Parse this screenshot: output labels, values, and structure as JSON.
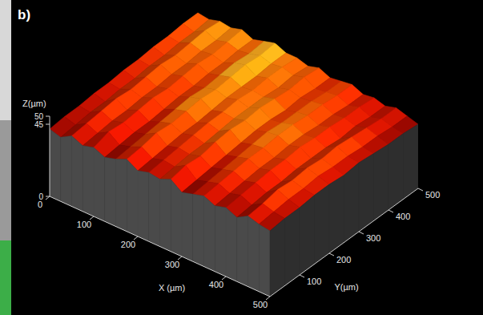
{
  "chart_data": {
    "type": "surface",
    "panel_label": "b)",
    "xlabel": "X (µm)",
    "ylabel": "Y(µm)",
    "zlabel": "Z(µm)",
    "x": [
      0,
      25,
      50,
      75,
      100,
      125,
      150,
      175,
      200,
      225,
      250,
      275,
      300,
      325,
      350,
      375,
      400,
      425,
      450,
      475,
      500
    ],
    "y": [
      0,
      50,
      100,
      150,
      200,
      250,
      300,
      350,
      400,
      450,
      500
    ],
    "z": [
      [
        42,
        40,
        44,
        41,
        43,
        40,
        42,
        45,
        41,
        43,
        42,
        45,
        40,
        42,
        44,
        41,
        43,
        40,
        44,
        42,
        41
      ],
      [
        43,
        41,
        45,
        42,
        46,
        41,
        43,
        46,
        42,
        44,
        43,
        47,
        41,
        43,
        45,
        42,
        44,
        41,
        45,
        43,
        42
      ],
      [
        43,
        42,
        46,
        43,
        45,
        42,
        44,
        48,
        43,
        45,
        44,
        46,
        42,
        44,
        46,
        43,
        45,
        42,
        47,
        44,
        42
      ],
      [
        44,
        42,
        47,
        43,
        46,
        42,
        45,
        47,
        44,
        46,
        44,
        48,
        43,
        45,
        47,
        44,
        46,
        42,
        46,
        44,
        43
      ],
      [
        44,
        43,
        46,
        44,
        47,
        43,
        46,
        48,
        44,
        47,
        45,
        49,
        44,
        46,
        47,
        44,
        46,
        43,
        47,
        45,
        43
      ],
      [
        45,
        43,
        47,
        44,
        46,
        44,
        47,
        49,
        45,
        47,
        46,
        48,
        45,
        47,
        48,
        45,
        47,
        43,
        46,
        44,
        42
      ],
      [
        45,
        44,
        48,
        45,
        47,
        44,
        46,
        48,
        46,
        48,
        46,
        49,
        45,
        46,
        48,
        45,
        46,
        43,
        47,
        44,
        43
      ],
      [
        46,
        44,
        47,
        45,
        48,
        45,
        47,
        49,
        46,
        47,
        46,
        48,
        44,
        46,
        47,
        44,
        46,
        42,
        46,
        43,
        42
      ],
      [
        46,
        45,
        48,
        46,
        47,
        45,
        48,
        50,
        46,
        48,
        45,
        47,
        45,
        46,
        47,
        44,
        45,
        43,
        45,
        43,
        41
      ],
      [
        47,
        45,
        49,
        46,
        48,
        46,
        47,
        49,
        47,
        48,
        46,
        48,
        44,
        45,
        46,
        43,
        45,
        42,
        44,
        42,
        41
      ],
      [
        47,
        46,
        48,
        47,
        49,
        46,
        48,
        50,
        47,
        47,
        45,
        47,
        44,
        45,
        46,
        43,
        44,
        42,
        44,
        42,
        40
      ]
    ],
    "xlim": [
      0,
      500
    ],
    "ylim": [
      0,
      500
    ],
    "zlim": [
      0,
      50
    ],
    "xticks": [
      0,
      100,
      200,
      300,
      400,
      500
    ],
    "yticks": [
      100,
      200,
      300,
      400,
      500
    ],
    "zticks": [
      0,
      45,
      50
    ]
  }
}
